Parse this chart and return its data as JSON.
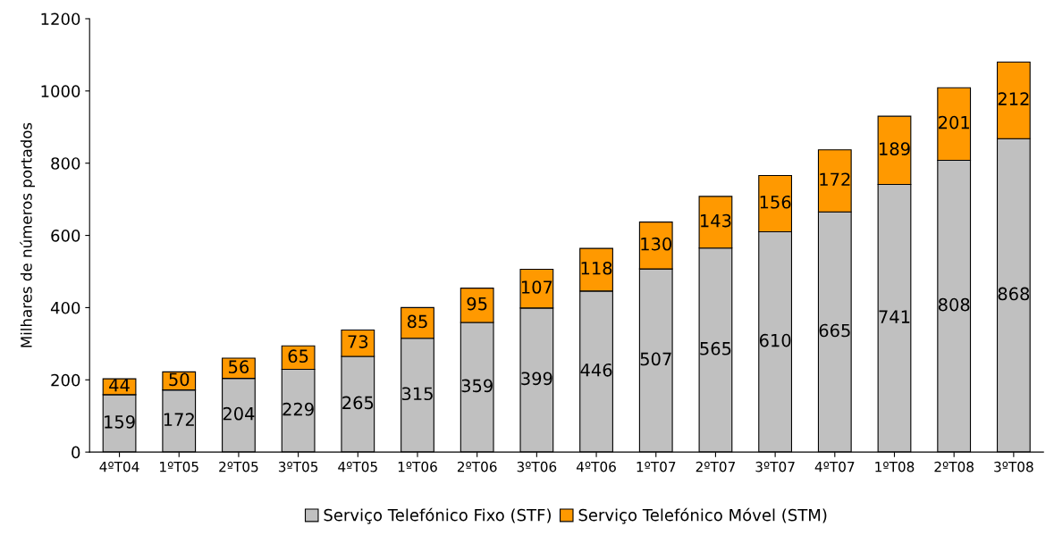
{
  "chart_data": {
    "type": "bar",
    "stacked": true,
    "ylabel": "Milhares de números portados",
    "categories": [
      "4ºT04",
      "1ºT05",
      "2ºT05",
      "3ºT05",
      "4ºT05",
      "1ºT06",
      "2ºT06",
      "3ºT06",
      "4ºT06",
      "1ºT07",
      "2ºT07",
      "3ºT07",
      "4ºT07",
      "1ºT08",
      "2ºT08",
      "3ºT08"
    ],
    "series": [
      {
        "name": "Serviço Telefónico Fixo (STF)",
        "color": "#c0c0c0",
        "values": [
          159,
          172,
          204,
          229,
          265,
          315,
          359,
          399,
          446,
          507,
          565,
          610,
          665,
          741,
          808,
          868
        ]
      },
      {
        "name": "Serviço Telefónico Móvel (STM)",
        "color": "#ff9900",
        "values": [
          44,
          50,
          56,
          65,
          73,
          85,
          95,
          107,
          118,
          130,
          143,
          156,
          172,
          189,
          201,
          212
        ]
      }
    ],
    "ylim": [
      0,
      1200
    ],
    "yticks": [
      0,
      200,
      400,
      600,
      800,
      1000,
      1200
    ],
    "data_labels": true,
    "grid": false,
    "legend": "bottom"
  }
}
